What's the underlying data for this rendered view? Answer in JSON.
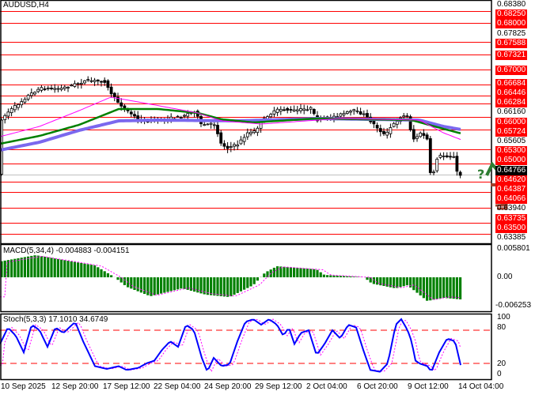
{
  "symbol_title": "AUDUSD,H4",
  "colors": {
    "resistance_support": "#ff0000",
    "ma_fast": "#ff00ff",
    "ma_mid": "#008000",
    "ma_slow": "#7b68ee",
    "candle": "#000000",
    "macd_hist": "#008000",
    "signal": "#ff00ff",
    "stoch_main": "#0000ff",
    "stoch_levels": "#ff0000",
    "arrow_up": "#2e7d32",
    "arrow_down": "#a0412d"
  },
  "price_axis": {
    "ticks": [
      "0.68380",
      "0.67825",
      "0.66160",
      "0.65605",
      "0.63940",
      "0.63385"
    ],
    "levels": [
      "0.68250",
      "0.68000",
      "0.67588",
      "0.67321",
      "0.67000",
      "0.66684",
      "0.66446",
      "0.66284",
      "0.66000",
      "0.65724",
      "0.65300",
      "0.65000",
      "0.64620",
      "0.64387",
      "0.64066",
      "0.63735",
      "0.63500"
    ],
    "current_price": "0.64766"
  },
  "macd": {
    "label": "MACD(5,34,4) -0.004883 -0.004151",
    "axis": [
      "0.005801",
      "0.00",
      "-0.006253"
    ]
  },
  "stoch": {
    "label": "Stoch(5,3,3) 17.1010 34.6749",
    "axis": [
      "100",
      "80",
      "20",
      "0"
    ]
  },
  "time_axis": [
    "10 Sep 2025",
    "12 Sep 20:00",
    "17 Sep 12:00",
    "22 Sep 04:00",
    "24 Sep 20:00",
    "29 Sep 12:00",
    "2 Oct 04:00",
    "6 Oct 20:00",
    "9 Oct 12:00",
    "14 Oct 04:00"
  ],
  "forecast": {
    "question_mark": "?",
    "up_icon": "arrow-up-icon",
    "down_icon": "arrow-down-icon"
  }
}
